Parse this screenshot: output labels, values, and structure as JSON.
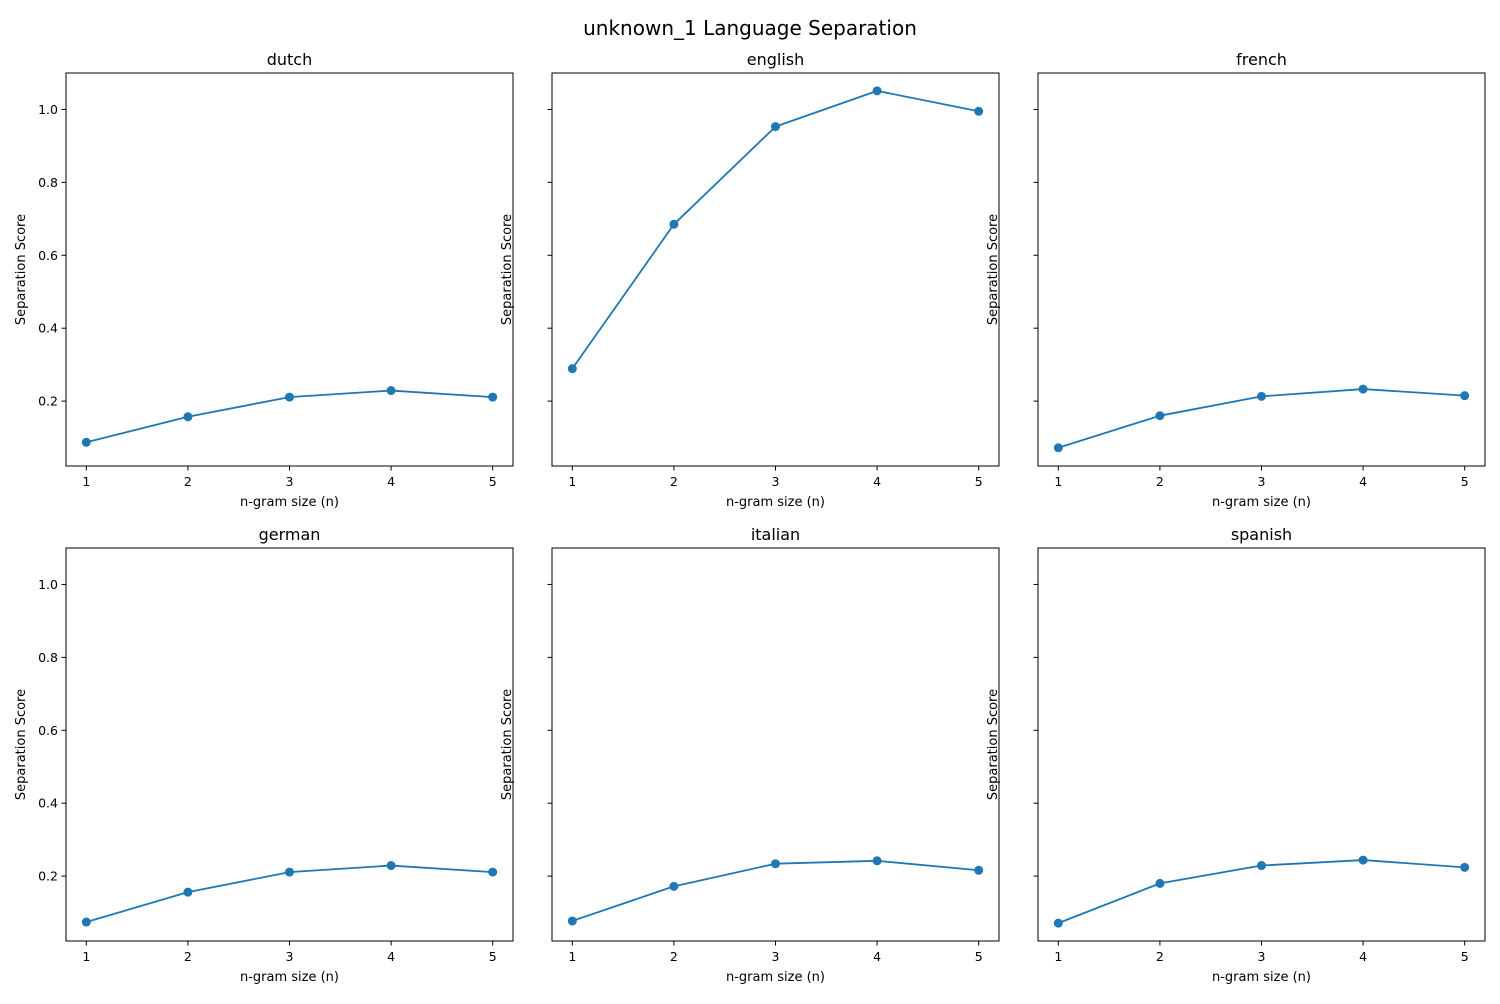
{
  "figure": {
    "title": "unknown_1 Language Separation"
  },
  "style": {
    "line_color": "#1f77b4",
    "axes_color": "#000000",
    "background": "#ffffff"
  },
  "chart_data": [
    {
      "type": "line",
      "title": "dutch",
      "xlabel": "n-gram size (n)",
      "ylabel": "Separation Score",
      "x": [
        1,
        2,
        3,
        4,
        5
      ],
      "series": [
        {
          "values": [
            0.087,
            0.157,
            0.211,
            0.229,
            0.211
          ]
        }
      ],
      "xlim": [
        0.8,
        5.2
      ],
      "ylim": [
        0.022,
        1.1
      ],
      "xticks": [
        1,
        2,
        3,
        4,
        5
      ],
      "yticks": [
        0.2,
        0.4,
        0.6,
        0.8,
        1.0
      ],
      "ytick_labels_visible": true,
      "grid": false,
      "markers": true
    },
    {
      "type": "line",
      "title": "english",
      "xlabel": "n-gram size (n)",
      "ylabel": "Separation Score",
      "x": [
        1,
        2,
        3,
        4,
        5
      ],
      "series": [
        {
          "values": [
            0.289,
            0.685,
            0.953,
            1.051,
            0.995
          ]
        }
      ],
      "xlim": [
        0.8,
        5.2
      ],
      "ylim": [
        0.022,
        1.1
      ],
      "xticks": [
        1,
        2,
        3,
        4,
        5
      ],
      "yticks": [
        0.2,
        0.4,
        0.6,
        0.8,
        1.0
      ],
      "ytick_labels_visible": false,
      "grid": false,
      "markers": true
    },
    {
      "type": "line",
      "title": "french",
      "xlabel": "n-gram size (n)",
      "ylabel": "Separation Score",
      "x": [
        1,
        2,
        3,
        4,
        5
      ],
      "series": [
        {
          "values": [
            0.072,
            0.16,
            0.213,
            0.233,
            0.215
          ]
        }
      ],
      "xlim": [
        0.8,
        5.2
      ],
      "ylim": [
        0.022,
        1.1
      ],
      "xticks": [
        1,
        2,
        3,
        4,
        5
      ],
      "yticks": [
        0.2,
        0.4,
        0.6,
        0.8,
        1.0
      ],
      "ytick_labels_visible": false,
      "grid": false,
      "markers": true
    },
    {
      "type": "line",
      "title": "german",
      "xlabel": "n-gram size (n)",
      "ylabel": "Separation Score",
      "x": [
        1,
        2,
        3,
        4,
        5
      ],
      "series": [
        {
          "values": [
            0.074,
            0.156,
            0.211,
            0.229,
            0.211
          ]
        }
      ],
      "xlim": [
        0.8,
        5.2
      ],
      "ylim": [
        0.022,
        1.1
      ],
      "xticks": [
        1,
        2,
        3,
        4,
        5
      ],
      "yticks": [
        0.2,
        0.4,
        0.6,
        0.8,
        1.0
      ],
      "ytick_labels_visible": true,
      "grid": false,
      "markers": true
    },
    {
      "type": "line",
      "title": "italian",
      "xlabel": "n-gram size (n)",
      "ylabel": "Separation Score",
      "x": [
        1,
        2,
        3,
        4,
        5
      ],
      "series": [
        {
          "values": [
            0.077,
            0.172,
            0.234,
            0.242,
            0.216
          ]
        }
      ],
      "xlim": [
        0.8,
        5.2
      ],
      "ylim": [
        0.022,
        1.1
      ],
      "xticks": [
        1,
        2,
        3,
        4,
        5
      ],
      "yticks": [
        0.2,
        0.4,
        0.6,
        0.8,
        1.0
      ],
      "ytick_labels_visible": false,
      "grid": false,
      "markers": true
    },
    {
      "type": "line",
      "title": "spanish",
      "xlabel": "n-gram size (n)",
      "ylabel": "Separation Score",
      "x": [
        1,
        2,
        3,
        4,
        5
      ],
      "series": [
        {
          "values": [
            0.071,
            0.18,
            0.229,
            0.244,
            0.224
          ]
        }
      ],
      "xlim": [
        0.8,
        5.2
      ],
      "ylim": [
        0.022,
        1.1
      ],
      "xticks": [
        1,
        2,
        3,
        4,
        5
      ],
      "yticks": [
        0.2,
        0.4,
        0.6,
        0.8,
        1.0
      ],
      "ytick_labels_visible": false,
      "grid": false,
      "markers": true
    }
  ]
}
